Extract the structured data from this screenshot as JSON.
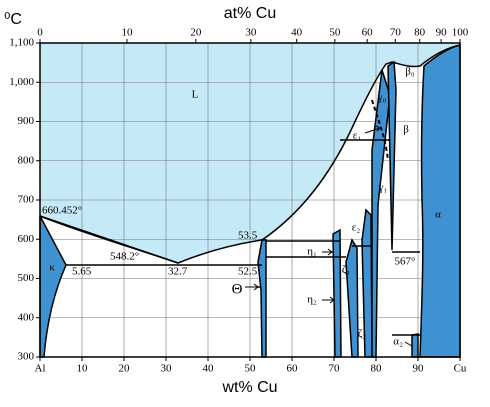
{
  "chart_data": {
    "type": "phase-diagram",
    "x_label": "wt% Cu",
    "x2_label": "at% Cu",
    "y_label": "⁰C",
    "xlim": [
      0,
      100
    ],
    "ylim": [
      300,
      1100
    ],
    "xticks": [
      {
        "value": 0,
        "label": "Al"
      },
      10,
      20,
      30,
      40,
      50,
      60,
      70,
      80,
      90,
      {
        "value": 100,
        "label": "Cu"
      }
    ],
    "x2ticks": [
      {
        "value": 0,
        "label": "0"
      },
      {
        "value": 20.7,
        "label": "10"
      },
      {
        "value": 37.1,
        "label": "20"
      },
      {
        "value": 50.2,
        "label": "30"
      },
      {
        "value": 61.1,
        "label": "40"
      },
      {
        "value": 70.2,
        "label": "50"
      },
      {
        "value": 77.9,
        "label": "60"
      },
      {
        "value": 84.6,
        "label": "70"
      },
      {
        "value": 90.4,
        "label": "80"
      },
      {
        "value": 95.5,
        "label": "90"
      },
      {
        "value": 100,
        "label": "100"
      }
    ],
    "yticks": [
      300,
      400,
      500,
      600,
      700,
      800,
      900,
      {
        "value": 1000,
        "label": "1,000"
      },
      {
        "value": 1100,
        "label": "1,100"
      }
    ],
    "grid": true,
    "annotations": [
      "L",
      "660.452°",
      "548.2°",
      "5.65",
      "32.7",
      "52.5",
      "53.5",
      "κ",
      "Θ",
      "η₁",
      "η₂",
      "ζ₁",
      "ζ₂",
      "ε₁",
      "ε₂",
      "γ₀",
      "γ₁",
      "β₀",
      "β",
      "α",
      "α₂",
      "567°"
    ]
  }
}
